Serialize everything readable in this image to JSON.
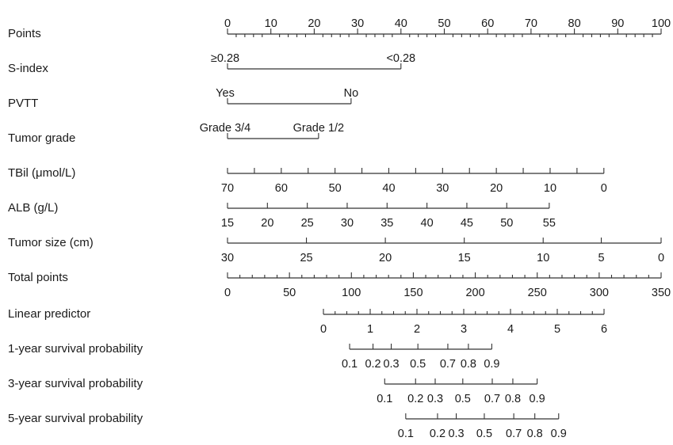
{
  "chart_data": {
    "type": "nomogram",
    "title": "",
    "rows": [
      {
        "id": "points",
        "label": "Points",
        "ticks": [
          {
            "value": 0,
            "label": "0"
          },
          {
            "value": 10,
            "label": "10"
          },
          {
            "value": 20,
            "label": "20"
          },
          {
            "value": 30,
            "label": "30"
          },
          {
            "value": 40,
            "label": "40"
          },
          {
            "value": 50,
            "label": "50"
          },
          {
            "value": 60,
            "label": "60"
          },
          {
            "value": 70,
            "label": "70"
          },
          {
            "value": 80,
            "label": "80"
          },
          {
            "value": 90,
            "label": "90"
          },
          {
            "value": 100,
            "label": "100"
          }
        ],
        "minor_step": 2
      },
      {
        "id": "s-index",
        "label": "S-index",
        "ticks": [
          {
            "points": 0,
            "label": "≥0.28"
          },
          {
            "points": 40,
            "label": "<0.28"
          }
        ]
      },
      {
        "id": "pvtt",
        "label": "PVTT",
        "ticks": [
          {
            "points": 0,
            "label": "Yes"
          },
          {
            "points": 28.5,
            "label": "No"
          }
        ]
      },
      {
        "id": "tumor-grade",
        "label": "Tumor grade",
        "ticks": [
          {
            "points": 0,
            "label": "Grade 3/4"
          },
          {
            "points": 21,
            "label": "Grade 1/2"
          }
        ]
      },
      {
        "id": "tbil",
        "label": "TBil (μmol/L)",
        "ticks": [
          {
            "points": 0,
            "label": "70"
          },
          {
            "points": 6.2,
            "label": ""
          },
          {
            "points": 12.4,
            "label": "60"
          },
          {
            "points": 18.6,
            "label": ""
          },
          {
            "points": 24.8,
            "label": "50"
          },
          {
            "points": 31,
            "label": ""
          },
          {
            "points": 37.2,
            "label": "40"
          },
          {
            "points": 43.4,
            "label": ""
          },
          {
            "points": 49.6,
            "label": "30"
          },
          {
            "points": 55.8,
            "label": ""
          },
          {
            "points": 62,
            "label": "20"
          },
          {
            "points": 68.2,
            "label": ""
          },
          {
            "points": 74.4,
            "label": "10"
          },
          {
            "points": 80.6,
            "label": ""
          },
          {
            "points": 86.8,
            "label": "0"
          }
        ]
      },
      {
        "id": "alb",
        "label": "ALB (g/L)",
        "ticks": [
          {
            "points": 0,
            "label": "15"
          },
          {
            "points": 9.2,
            "label": "20"
          },
          {
            "points": 18.4,
            "label": "25"
          },
          {
            "points": 27.6,
            "label": "30"
          },
          {
            "points": 36.8,
            "label": "35"
          },
          {
            "points": 46,
            "label": "40"
          },
          {
            "points": 55.2,
            "label": "45"
          },
          {
            "points": 64.4,
            "label": "50"
          },
          {
            "points": 74.2,
            "label": "55"
          }
        ]
      },
      {
        "id": "tumor-size",
        "label": "Tumor size (cm)",
        "ticks": [
          {
            "points": 0,
            "label": "30"
          },
          {
            "points": 18.2,
            "label": "25"
          },
          {
            "points": 36.4,
            "label": "20"
          },
          {
            "points": 54.6,
            "label": "15"
          },
          {
            "points": 72.8,
            "label": "10"
          },
          {
            "points": 86.2,
            "label": "5"
          },
          {
            "points": 100,
            "label": "0"
          }
        ]
      },
      {
        "id": "total-points",
        "label": "Total points",
        "ticks": [
          {
            "value": 0,
            "label": "0"
          },
          {
            "value": 50,
            "label": "50"
          },
          {
            "value": 100,
            "label": "100"
          },
          {
            "value": 150,
            "label": "150"
          },
          {
            "value": 200,
            "label": "200"
          },
          {
            "value": 250,
            "label": "250"
          },
          {
            "value": 300,
            "label": "300"
          },
          {
            "value": 350,
            "label": "350"
          }
        ],
        "range": [
          0,
          350
        ],
        "minor_step": 10
      },
      {
        "id": "linear-predictor",
        "label": "Linear predictor",
        "ticks": [
          {
            "value": 0,
            "label": "0"
          },
          {
            "value": 1,
            "label": "1"
          },
          {
            "value": 2,
            "label": "2"
          },
          {
            "value": 3,
            "label": "3"
          },
          {
            "value": 4,
            "label": "4"
          },
          {
            "value": 5,
            "label": "5"
          },
          {
            "value": 6,
            "label": "6"
          }
        ],
        "minor_step": 0.25
      },
      {
        "id": "survival-1y",
        "label": "1-year survival probability",
        "ticks": [
          {
            "lp": 0.56,
            "label": "0.1"
          },
          {
            "lp": 1.06,
            "label": "0.2"
          },
          {
            "lp": 1.45,
            "label": "0.3"
          },
          {
            "lp": 2.02,
            "label": "0.5"
          },
          {
            "lp": 2.66,
            "label": "0.7"
          },
          {
            "lp": 3.1,
            "label": "0.8"
          },
          {
            "lp": 3.6,
            "label": "0.9"
          }
        ]
      },
      {
        "id": "survival-3y",
        "label": "3-year survival probability",
        "ticks": [
          {
            "lp": 1.31,
            "label": "0.1"
          },
          {
            "lp": 1.97,
            "label": "0.2"
          },
          {
            "lp": 2.39,
            "label": "0.3"
          },
          {
            "lp": 2.98,
            "label": "0.5"
          },
          {
            "lp": 3.61,
            "label": "0.7"
          },
          {
            "lp": 4.05,
            "label": "0.8"
          },
          {
            "lp": 4.57,
            "label": "0.9"
          }
        ]
      },
      {
        "id": "survival-5y",
        "label": "5-year survival probability",
        "ticks": [
          {
            "lp": 1.76,
            "label": "0.1"
          },
          {
            "lp": 2.44,
            "label": "0.2"
          },
          {
            "lp": 2.84,
            "label": "0.3"
          },
          {
            "lp": 3.44,
            "label": "0.5"
          },
          {
            "lp": 4.07,
            "label": "0.7"
          },
          {
            "lp": 4.52,
            "label": "0.8"
          },
          {
            "lp": 5.03,
            "label": "0.9"
          }
        ]
      }
    ]
  }
}
